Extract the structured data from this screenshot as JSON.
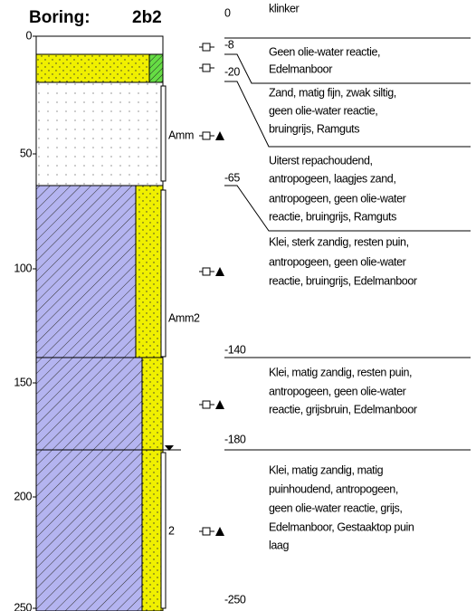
{
  "header": {
    "title": "Boring:",
    "boring_id": "2b2"
  },
  "depth_axis": {
    "ticks": [
      "0",
      "50",
      "100",
      "150",
      "200",
      "250"
    ]
  },
  "samples": [
    "Amm",
    "Amm2",
    "2"
  ],
  "depth_labels": [
    "0",
    "-8",
    "-20",
    "-65",
    "-140",
    "-180",
    "-250"
  ],
  "descriptions": [
    [
      "klinker"
    ],
    [
      "Geen olie-water reactie,",
      "Edelmanboor"
    ],
    [
      "Zand, matig fijn, zwak siltig,",
      "geen olie-water reactie,",
      "bruingrijs, Ramguts"
    ],
    [
      "Uiterst repachoudend,",
      "antropogeen, laagjes zand,",
      "antropogeen, geen olie-water",
      "reactie, bruingrijs, Ramguts"
    ],
    [
      "Klei, sterk zandig, resten puin,",
      "antropogeen, geen olie-water",
      "reactie, bruingrijs, Edelmanboor"
    ],
    [
      "Klei, matig zandig, resten puin,",
      "antropogeen, geen olie-water",
      "reactie, grijsbruin, Edelmanboor"
    ],
    [
      "Klei, matig zandig, matig",
      "puinhoudend, antropogeen,",
      "geen olie-water reactie, grijs,",
      "Edelmanboor, Gestaaktop puin",
      "laag"
    ]
  ]
}
